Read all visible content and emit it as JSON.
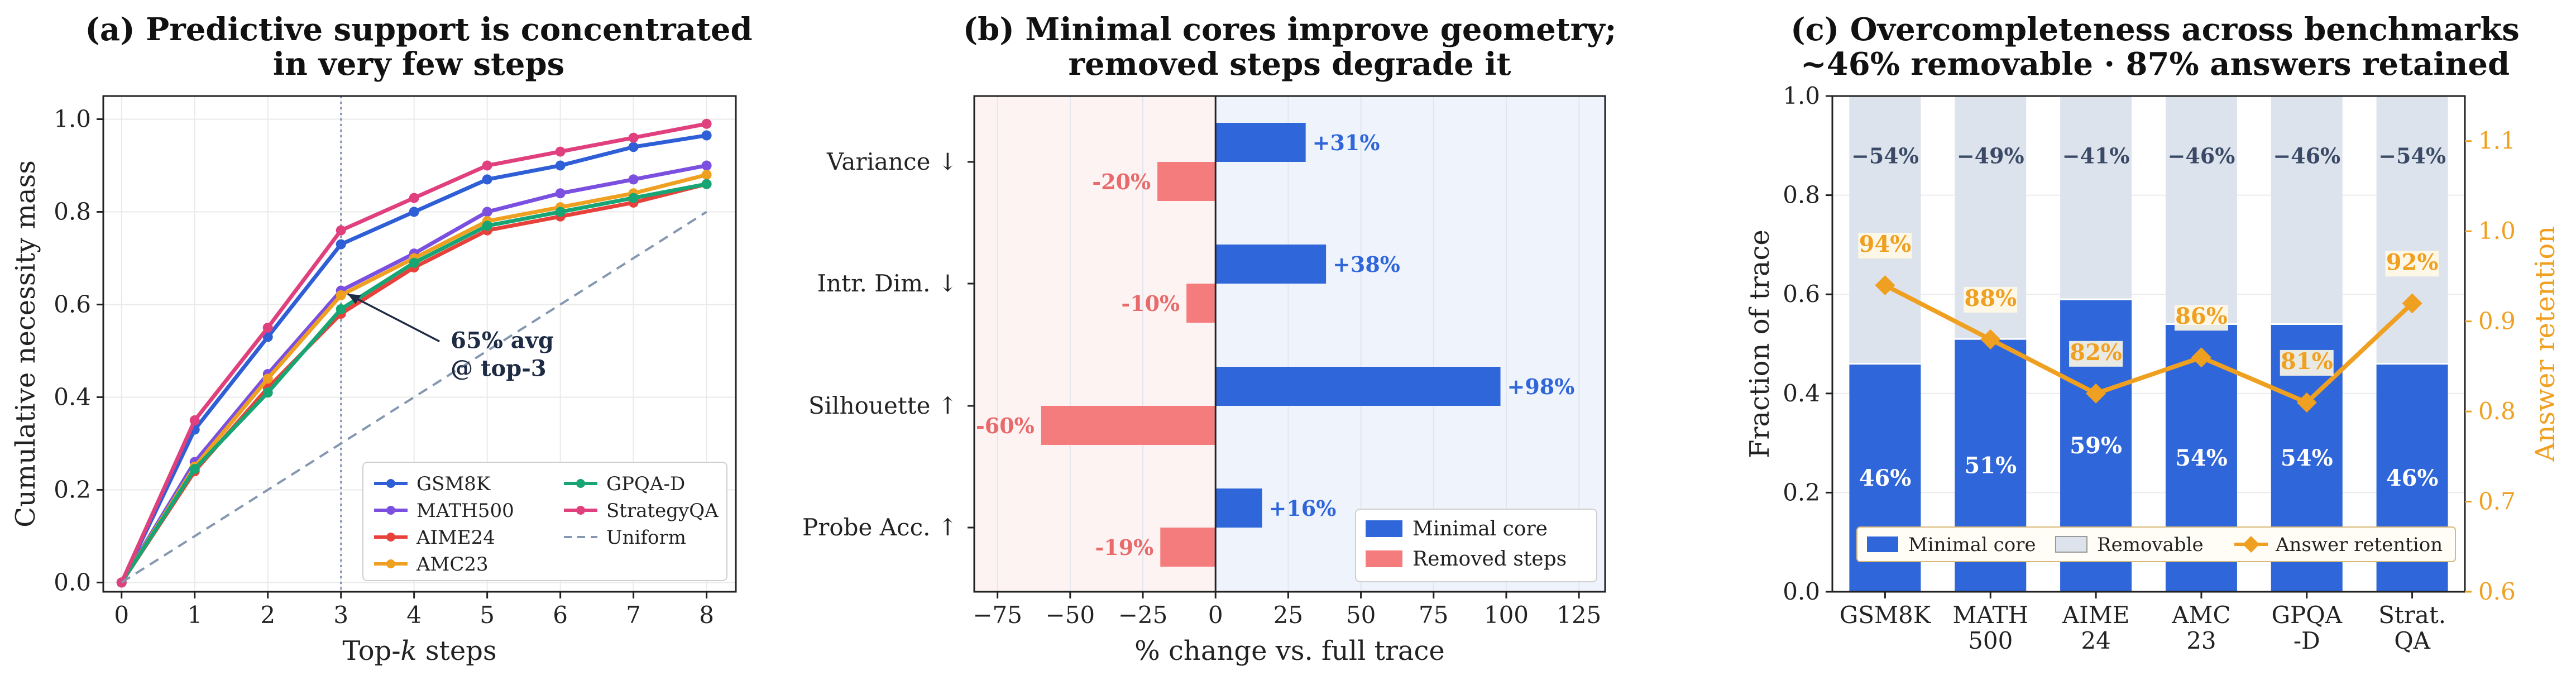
{
  "chart_data": [
    {
      "type": "line",
      "title": "(a) Predictive support is concentrated\nin very few steps",
      "xlabel": "Top-k steps",
      "ylabel": "Cumulative necessity mass",
      "xlim": [
        -0.25,
        8.4
      ],
      "ylim": [
        -0.02,
        1.05
      ],
      "x": [
        0,
        1,
        2,
        3,
        4,
        5,
        6,
        7,
        8
      ],
      "xticks": [
        "0",
        "1",
        "2",
        "3",
        "4",
        "5",
        "6",
        "7",
        "8"
      ],
      "yticks": [
        "0.0",
        "0.2",
        "0.4",
        "0.6",
        "0.8",
        "1.0"
      ],
      "series": [
        {
          "name": "GSM8K",
          "color": "#2f5fd6",
          "values": [
            0.0,
            0.33,
            0.53,
            0.73,
            0.8,
            0.87,
            0.9,
            0.94,
            0.965
          ]
        },
        {
          "name": "MATH500",
          "color": "#7b4fe0",
          "values": [
            0.0,
            0.26,
            0.45,
            0.63,
            0.71,
            0.8,
            0.84,
            0.87,
            0.9
          ]
        },
        {
          "name": "AIME24",
          "color": "#e8413b",
          "values": [
            0.0,
            0.24,
            0.42,
            0.58,
            0.68,
            0.76,
            0.79,
            0.82,
            0.86
          ]
        },
        {
          "name": "AMC23",
          "color": "#f0a020",
          "values": [
            0.0,
            0.25,
            0.44,
            0.62,
            0.7,
            0.78,
            0.81,
            0.84,
            0.88
          ]
        },
        {
          "name": "GPQA-D",
          "color": "#17a673",
          "values": [
            0.0,
            0.245,
            0.41,
            0.59,
            0.69,
            0.77,
            0.8,
            0.83,
            0.86
          ]
        },
        {
          "name": "StrategyQA",
          "color": "#e0407e",
          "values": [
            0.0,
            0.35,
            0.55,
            0.76,
            0.83,
            0.9,
            0.93,
            0.96,
            0.99
          ]
        },
        {
          "name": "Uniform",
          "color": "#8497b0",
          "dashed": true,
          "values": [
            0.0,
            0.1,
            0.2,
            0.3,
            0.4,
            0.5,
            0.6,
            0.7,
            0.8
          ]
        }
      ],
      "vline_x": 3,
      "annotation": {
        "lines": [
          "65% avg",
          "@ top-3"
        ],
        "point": [
          3,
          0.63
        ],
        "text_pos": [
          4.5,
          0.53
        ]
      },
      "legend_position": "lower-right",
      "grid": true
    },
    {
      "type": "bar",
      "orientation": "horizontal",
      "title": "(b) Minimal cores improve geometry;\nremoved steps degrade it",
      "xlabel": "% change vs. full trace",
      "ylabel": "",
      "xlim": [
        -83,
        134
      ],
      "xticks": [
        -75,
        -50,
        -25,
        0,
        25,
        50,
        75,
        100,
        125
      ],
      "xtick_labels": [
        "−75",
        "−50",
        "−25",
        "0",
        "25",
        "50",
        "75",
        "100",
        "125"
      ],
      "categories": [
        "Variance ↓",
        "Intr. Dim. ↓",
        "Silhouette ↑",
        "Probe Acc. ↑"
      ],
      "series": [
        {
          "name": "Minimal core",
          "color": "#2f66d9",
          "values": [
            31,
            38,
            98,
            16
          ],
          "labels": [
            "+31%",
            "+38%",
            "+98%",
            "+16%"
          ]
        },
        {
          "name": "Removed steps",
          "color": "#f47c7c",
          "values": [
            -20,
            -10,
            -60,
            -19
          ],
          "labels": [
            "-20%",
            "-10%",
            "-60%",
            "-19%"
          ]
        }
      ],
      "legend_position": "lower-right",
      "grid": true
    },
    {
      "type": "bar",
      "stacked": true,
      "title": "(c) Overcompleteness across benchmarks\n~46% removable · 87% answers retained",
      "xlabel": "",
      "ylabel": "Fraction of trace",
      "y2label": "Answer retention",
      "ylim": [
        0,
        1
      ],
      "y2lim": [
        0.6,
        1.15
      ],
      "yticks": [
        "0.0",
        "0.2",
        "0.4",
        "0.6",
        "0.8",
        "1.0"
      ],
      "y2ticks": [
        "0.6",
        "0.7",
        "0.8",
        "0.9",
        "1.0",
        "1.1"
      ],
      "categories": [
        "GSM8K",
        "MATH\n500",
        "AIME\n24",
        "AMC\n23",
        "GPQA\n-D",
        "Strat.\nQA"
      ],
      "series": [
        {
          "name": "Minimal core",
          "color": "#2f66d9",
          "values": [
            0.46,
            0.51,
            0.59,
            0.54,
            0.54,
            0.46
          ],
          "labels": [
            "46%",
            "51%",
            "59%",
            "54%",
            "54%",
            "46%"
          ]
        },
        {
          "name": "Removable",
          "color": "#dde3ec",
          "values": [
            0.54,
            0.49,
            0.41,
            0.46,
            0.46,
            0.54
          ],
          "labels": [
            "−54%",
            "−49%",
            "−41%",
            "−46%",
            "−46%",
            "−54%"
          ]
        },
        {
          "name": "Answer retention",
          "color": "#f0a020",
          "axis": "right",
          "values": [
            0.94,
            0.88,
            0.82,
            0.86,
            0.81,
            0.92
          ],
          "labels": [
            "94%",
            "88%",
            "82%",
            "86%",
            "81%",
            "92%"
          ]
        }
      ],
      "legend_position": "lower-center",
      "grid": true
    }
  ]
}
